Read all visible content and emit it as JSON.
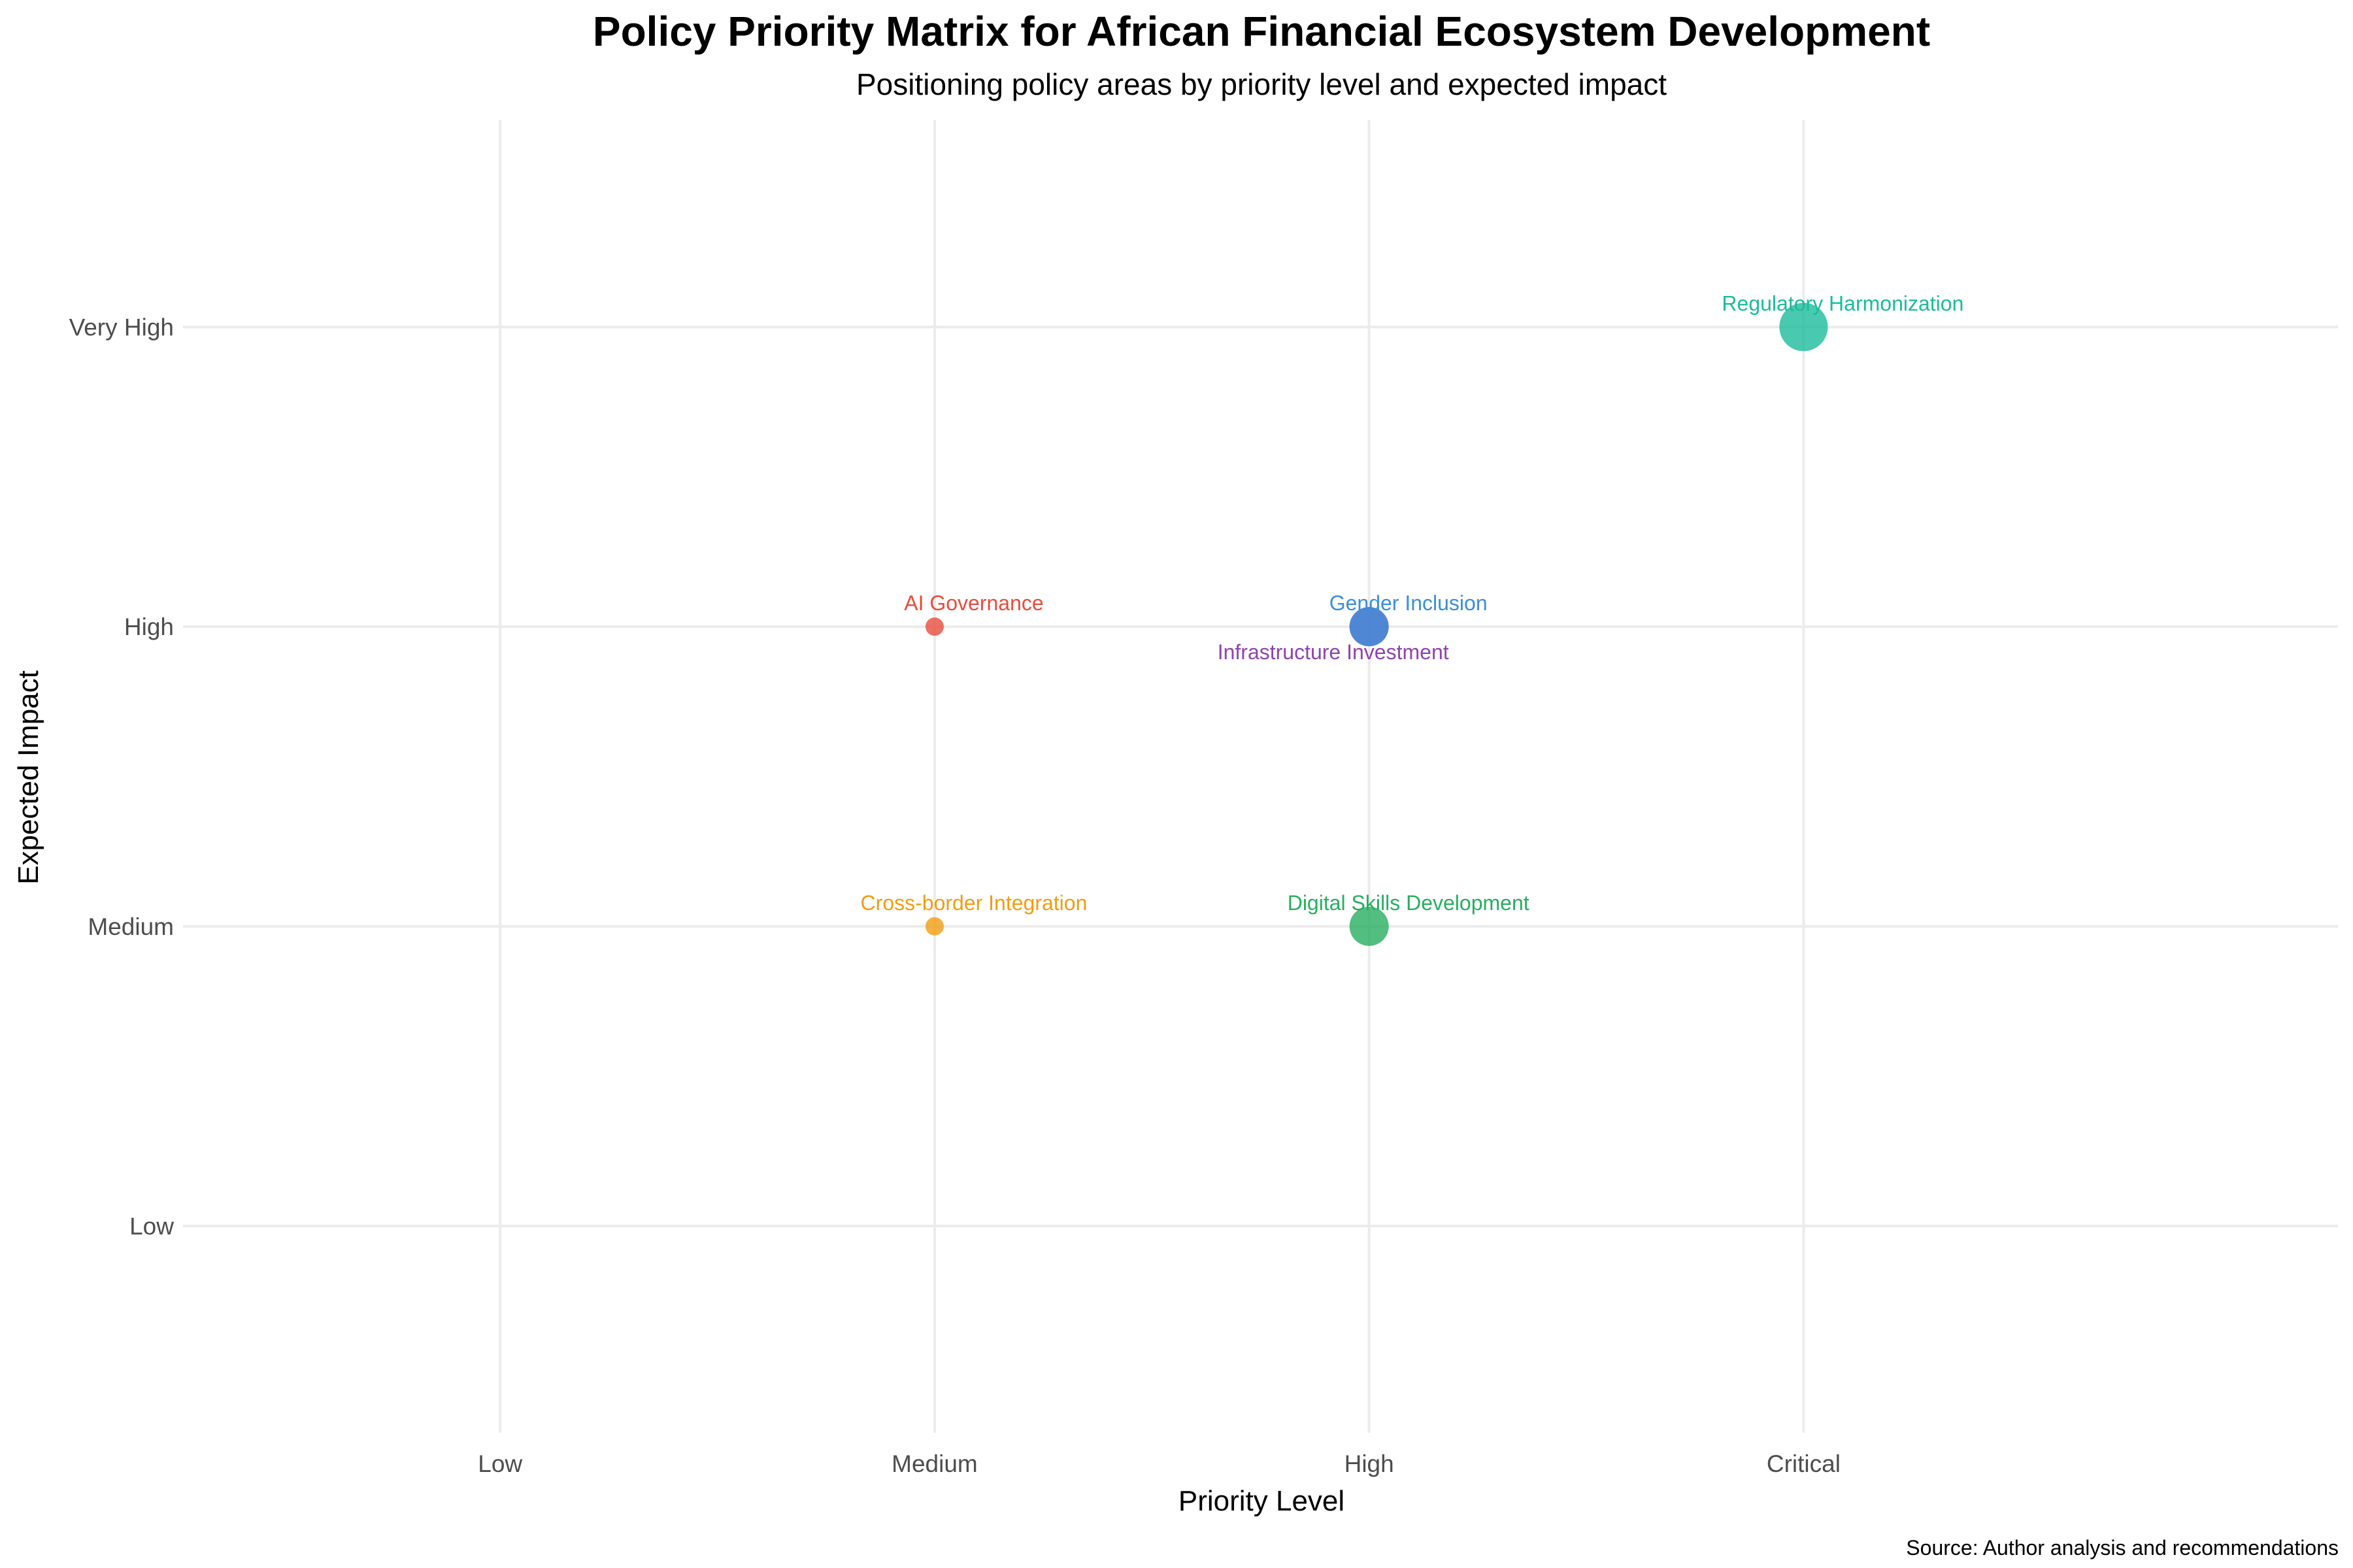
{
  "chart_data": {
    "type": "scatter",
    "title": "Policy Priority Matrix for African Financial Ecosystem Development",
    "subtitle": "Positioning policy areas by priority level and expected impact",
    "xlabel": "Priority Level",
    "ylabel": "Expected Impact",
    "caption": "Source: Author analysis and recommendations",
    "x_categories": [
      "Low",
      "Medium",
      "High",
      "Critical"
    ],
    "y_categories": [
      "Low",
      "Medium",
      "High",
      "Very High"
    ],
    "xlim": [
      0.27,
      5.23
    ],
    "ylim": [
      0.31,
      4.69
    ],
    "grid": true,
    "legend": "none",
    "points": [
      {
        "label": "Regulatory Harmonization",
        "x": "Critical",
        "y": "Very High",
        "size": 3,
        "color": "#1abc9c",
        "label_pos": "above"
      },
      {
        "label": "AI Governance",
        "x": "Medium",
        "y": "High",
        "size": 1,
        "color": "#e74c3c",
        "label_pos": "above"
      },
      {
        "label": "Infrastructure Investment",
        "x": "High",
        "y": "High",
        "size": 2,
        "color": "#8e44ad",
        "label_pos": "below"
      },
      {
        "label": "Gender Inclusion",
        "x": "High",
        "y": "High",
        "size": 2,
        "color": "#3a8fd9",
        "label_pos": "above"
      },
      {
        "label": "Cross-border Integration",
        "x": "Medium",
        "y": "Medium",
        "size": 1,
        "color": "#f39c12",
        "label_pos": "above"
      },
      {
        "label": "Digital Skills Development",
        "x": "High",
        "y": "Medium",
        "size": 2,
        "color": "#27ae60",
        "label_pos": "above"
      }
    ]
  }
}
